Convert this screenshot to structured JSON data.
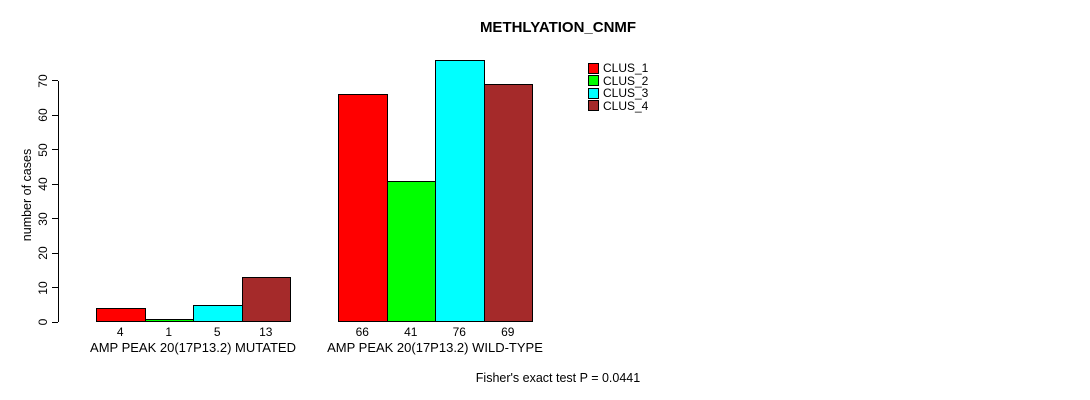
{
  "title": "METHLYATION_CNMF",
  "footer": {
    "stat_text": "Fisher's exact test P = 0.0441"
  },
  "chart_data": {
    "type": "bar",
    "title": "METHLYATION_CNMF",
    "xlabel": "",
    "ylabel": "number of cases",
    "ylim": [
      0,
      70
    ],
    "yticks": [
      0,
      10,
      20,
      30,
      40,
      50,
      60,
      70
    ],
    "grid": false,
    "legend_position": "top-right",
    "background_color": "#FFFFFF",
    "axis_color": "#000000",
    "bar_value_labels": true,
    "categories": [
      "AMP PEAK 20(17P13.2) MUTATED",
      "AMP PEAK 20(17P13.2) WILD-TYPE"
    ],
    "series": [
      {
        "name": "CLUS_1",
        "color": "#FF0000",
        "values": [
          4,
          66
        ]
      },
      {
        "name": "CLUS_2",
        "color": "#00FF00",
        "values": [
          1,
          41
        ]
      },
      {
        "name": "CLUS_3",
        "color": "#00FFFF",
        "values": [
          5,
          76
        ]
      },
      {
        "name": "CLUS_4",
        "color": "#A52A2A",
        "values": [
          13,
          69
        ]
      }
    ],
    "annotation": "Fisher's exact test P = 0.0441"
  }
}
